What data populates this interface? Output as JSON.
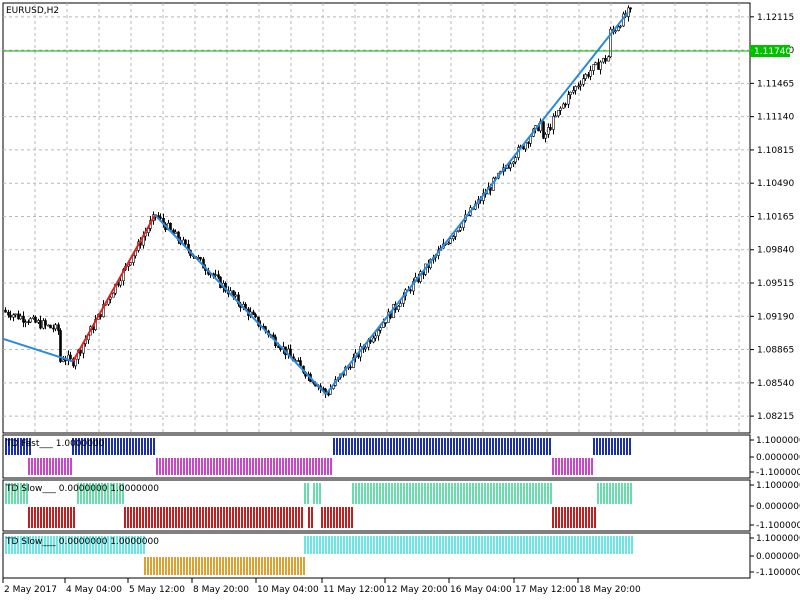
{
  "window": {
    "title": "EURUSD,H2"
  },
  "current_price": {
    "value": "1.11740",
    "color": "#00c000"
  },
  "price_axis": {
    "ticks": [
      "1.12115",
      "1.11790",
      "1.11465",
      "1.11140",
      "1.10815",
      "1.10490",
      "1.10165",
      "1.09840",
      "1.09515",
      "1.09190",
      "1.08865",
      "1.08540",
      "1.08215"
    ]
  },
  "time_axis": {
    "labels": [
      "2 May 2017",
      "4 May 04:00",
      "5 May 12:00",
      "8 May 20:00",
      "10 May 04:00",
      "11 May 12:00",
      "12 May 20:00",
      "16 May 04:00",
      "17 May 12:00",
      "18 May 20:00"
    ]
  },
  "indicators": [
    {
      "name": "TD Fast",
      "values": "1.0000000",
      "ticks": [
        "1.1000000",
        "0.0000000",
        "-1.1000000"
      ],
      "colors": {
        "up": "#1a2fa8",
        "down": "#cc44cc"
      }
    },
    {
      "name": "TD Slow",
      "values": "0.0000000 1.0000000",
      "ticks": [
        "1.1000000",
        "0.0000000",
        "-1.1000000"
      ],
      "colors": {
        "up": "#66ddaa",
        "down": "#c02020"
      }
    },
    {
      "name": "TD Slow",
      "values": "0.0000000 1.0000000",
      "ticks": [
        "1.1000000",
        "0.0000000",
        "-1.1000000"
      ],
      "colors": {
        "up": "#66e8e8",
        "down": "#e0a030"
      }
    }
  ],
  "chart_data": {
    "type": "candlestick",
    "symbol": "EURUSD",
    "timeframe": "H2",
    "ylim": [
      1.0805,
      1.1225
    ],
    "zigzag": [
      {
        "x": "2 May 2017",
        "y": 1.0897,
        "color": "#e02020"
      },
      {
        "x": "4 May 04:00",
        "y": 1.0875,
        "color": "#2a8ae0"
      },
      {
        "x": "5 May 12:00",
        "y": 1.1018,
        "color": "#e02020"
      },
      {
        "x": "11 May 04:00",
        "y": 1.0843,
        "color": "#2a8ae0"
      },
      {
        "x": "19 May 00:00",
        "y": 1.1216,
        "color": "#2a8ae0"
      }
    ],
    "grid": true
  }
}
